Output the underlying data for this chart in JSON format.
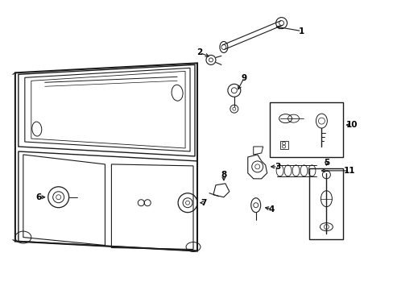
{
  "bg_color": "#ffffff",
  "line_color": "#1a1a1a",
  "text_color": "#000000",
  "fig_width": 4.89,
  "fig_height": 3.6,
  "dpi": 100,
  "label_fontsize": 7.5
}
